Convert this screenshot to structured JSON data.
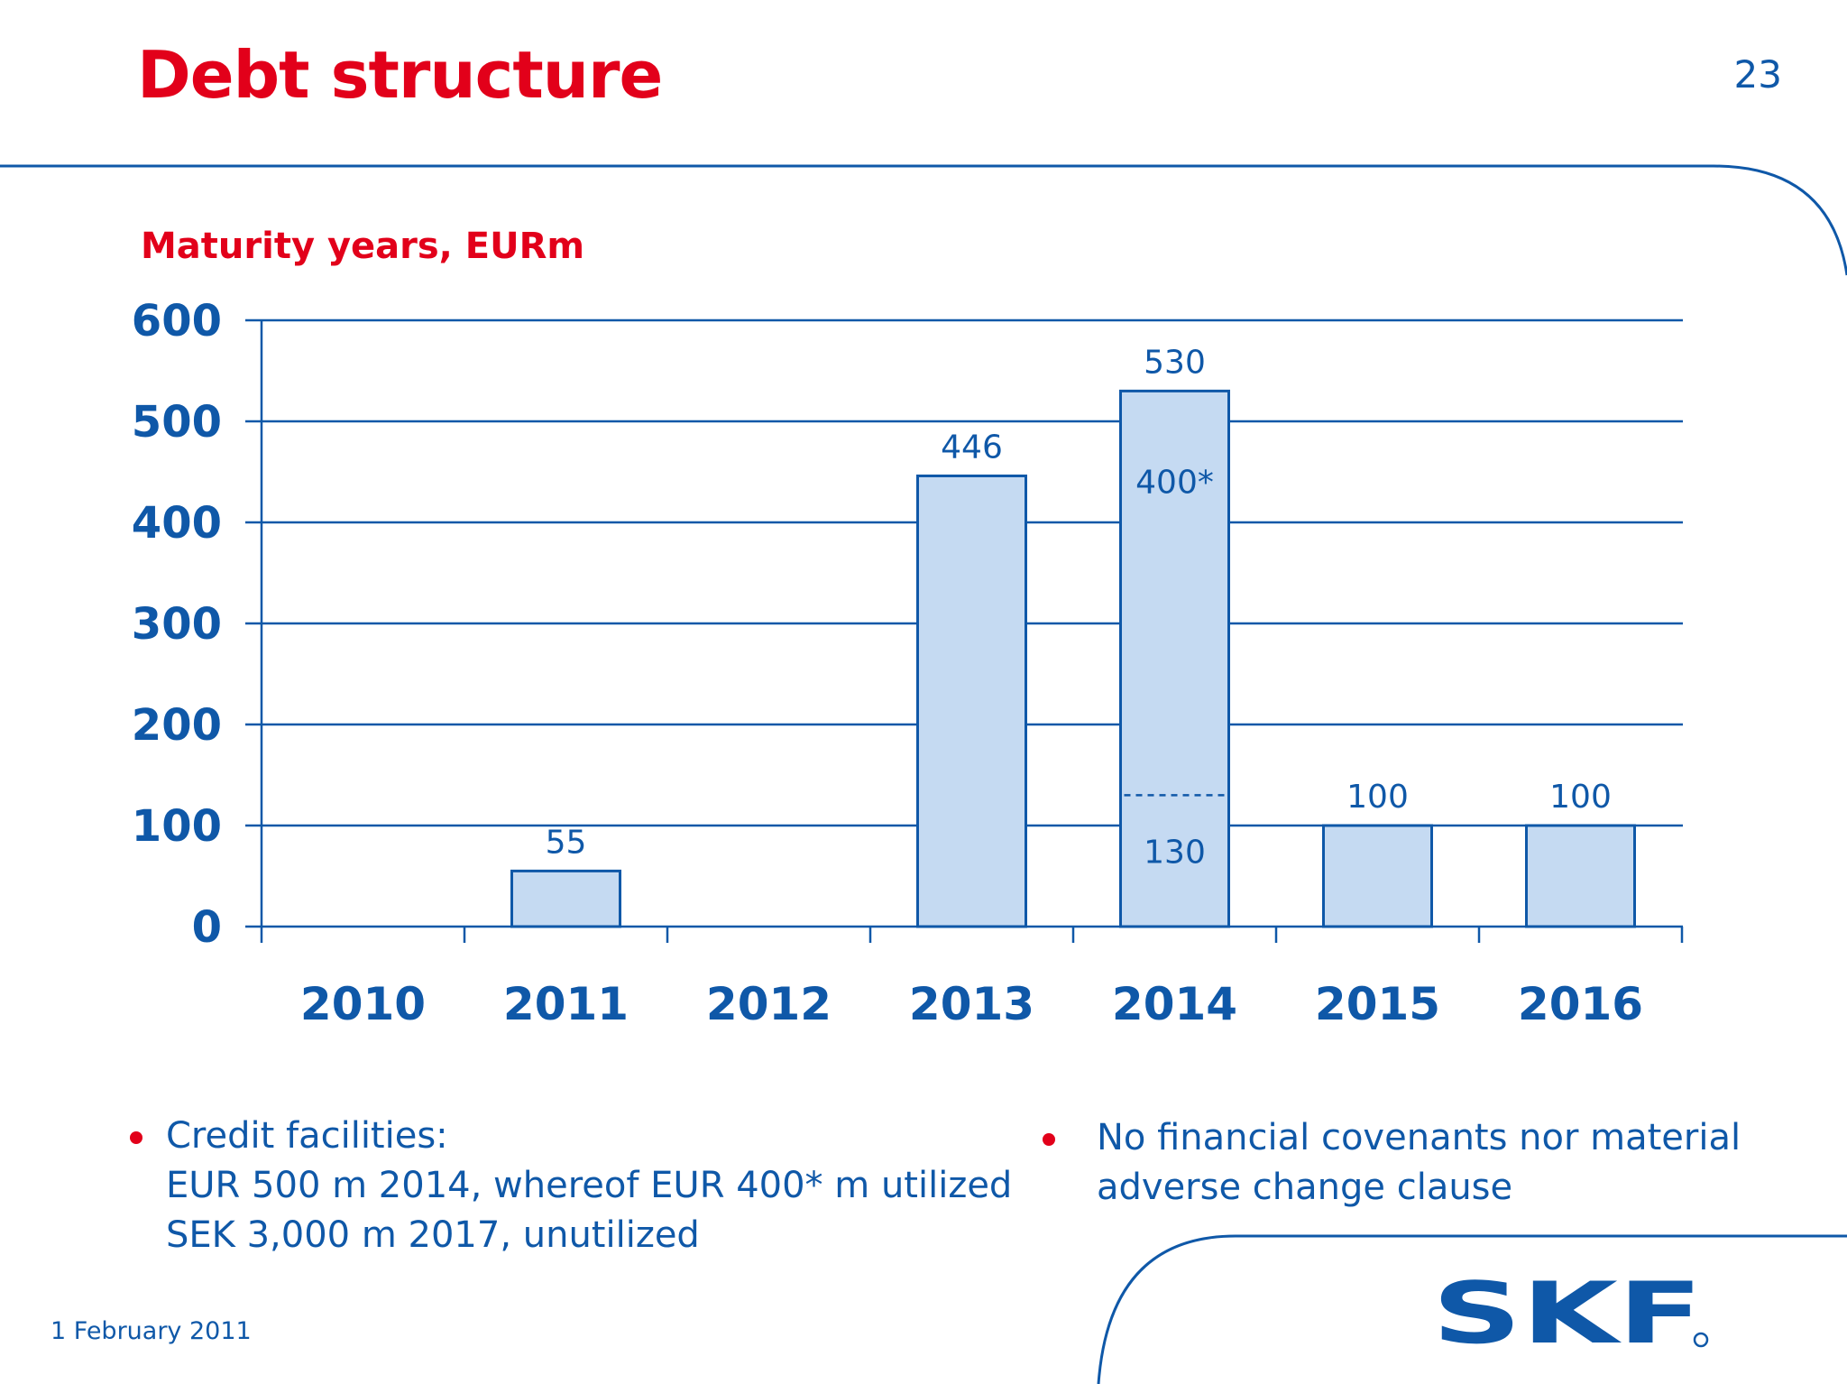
{
  "header": {
    "title": "Debt structure",
    "page_number": "23"
  },
  "chart": {
    "subtitle": "Maturity years, EURm"
  },
  "chart_data": {
    "type": "bar",
    "title": "Maturity years, EURm",
    "categories": [
      "2010",
      "2011",
      "2012",
      "2013",
      "2014",
      "2015",
      "2016"
    ],
    "values": [
      0,
      55,
      0,
      446,
      530,
      100,
      100
    ],
    "data_labels": [
      "",
      "55",
      "",
      "446",
      "530",
      "100",
      "100"
    ],
    "ylim": [
      0,
      600
    ],
    "yticks": [
      0,
      100,
      200,
      300,
      400,
      500,
      600
    ],
    "ytick_labels": [
      "0",
      "100",
      "200",
      "300",
      "400",
      "500",
      "600"
    ],
    "grid": true,
    "legend": "none",
    "segments": {
      "category": "2014",
      "split_value": 130,
      "labels": {
        "lower": "130",
        "upper": "400*"
      }
    },
    "colors": {
      "bar_fill": "#c5daf2",
      "bar_edge": "#0f58a8",
      "grid": "#0f58a8",
      "text": "#0f58a8"
    }
  },
  "bullets_left": {
    "lines": [
      "Credit facilities:",
      "EUR 500 m 2014, whereof EUR 400* m utilized",
      "SEK 3,000 m 2017, unutilized"
    ]
  },
  "bullets_right": {
    "lines": [
      "No financial covenants nor material",
      "adverse change clause"
    ]
  },
  "footer": {
    "date": "1 February 2011",
    "logo_text": "SKF"
  },
  "colors": {
    "accent_red": "#e2001a",
    "brand_blue": "#0f58a8"
  }
}
